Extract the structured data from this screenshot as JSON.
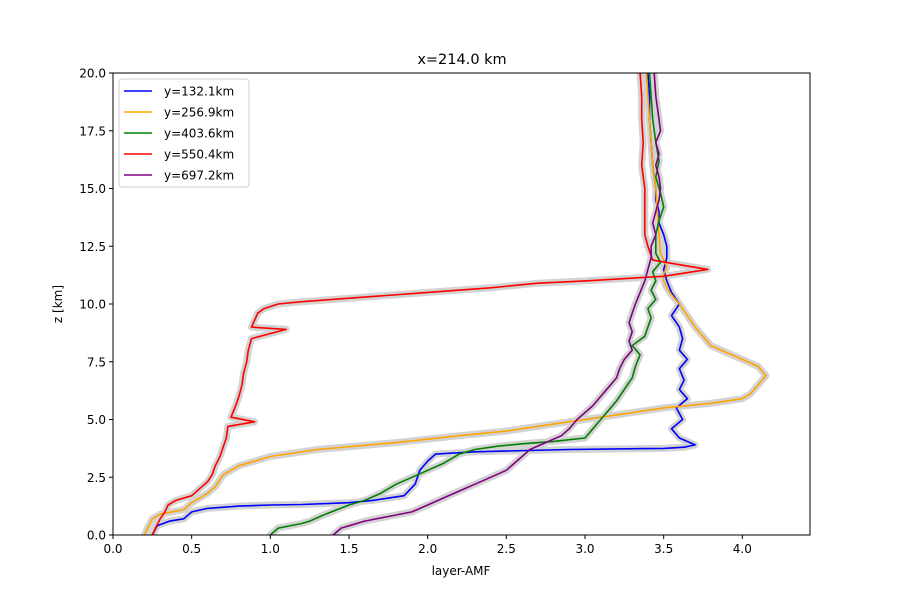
{
  "chart_data": {
    "type": "line",
    "title": "x=214.0 km",
    "xlabel": "layer-AMF",
    "ylabel": "z [km]",
    "xlim": [
      0.0,
      4.43
    ],
    "ylim": [
      0.0,
      20.0
    ],
    "xticks": [
      0.0,
      0.5,
      1.0,
      1.5,
      2.0,
      2.5,
      3.0,
      3.5,
      4.0
    ],
    "xtick_labels": [
      "0.0",
      "0.5",
      "1.0",
      "1.5",
      "2.0",
      "2.5",
      "3.0",
      "3.5",
      "4.0"
    ],
    "yticks": [
      0.0,
      2.5,
      5.0,
      7.5,
      10.0,
      12.5,
      15.0,
      17.5,
      20.0
    ],
    "ytick_labels": [
      "0.0",
      "2.5",
      "5.0",
      "7.5",
      "10.0",
      "12.5",
      "15.0",
      "17.5",
      "20.0"
    ],
    "grid": false,
    "legend_position": "top-left",
    "uncertainty_band_color": "#d3d3d3",
    "series": [
      {
        "name": "y=132.1km",
        "color": "#0000ff",
        "points": [
          [
            0.25,
            0.0
          ],
          [
            0.28,
            0.4
          ],
          [
            0.36,
            0.6
          ],
          [
            0.45,
            0.7
          ],
          [
            0.5,
            1.0
          ],
          [
            0.6,
            1.15
          ],
          [
            0.8,
            1.25
          ],
          [
            1.0,
            1.3
          ],
          [
            1.2,
            1.32
          ],
          [
            1.5,
            1.4
          ],
          [
            1.65,
            1.5
          ],
          [
            1.85,
            1.7
          ],
          [
            1.92,
            2.2
          ],
          [
            1.95,
            2.8
          ],
          [
            2.0,
            3.2
          ],
          [
            2.05,
            3.5
          ],
          [
            2.3,
            3.6
          ],
          [
            2.9,
            3.7
          ],
          [
            3.5,
            3.75
          ],
          [
            3.63,
            3.8
          ],
          [
            3.7,
            3.9
          ],
          [
            3.6,
            4.2
          ],
          [
            3.55,
            4.6
          ],
          [
            3.62,
            5.0
          ],
          [
            3.58,
            5.5
          ],
          [
            3.65,
            5.9
          ],
          [
            3.6,
            6.3
          ],
          [
            3.63,
            6.7
          ],
          [
            3.6,
            7.2
          ],
          [
            3.65,
            7.6
          ],
          [
            3.6,
            8.0
          ],
          [
            3.62,
            8.5
          ],
          [
            3.6,
            9.0
          ],
          [
            3.55,
            9.5
          ],
          [
            3.58,
            9.8
          ],
          [
            3.6,
            10.0
          ],
          [
            3.55,
            10.5
          ],
          [
            3.52,
            11.0
          ],
          [
            3.5,
            11.5
          ],
          [
            3.52,
            12.0
          ],
          [
            3.52,
            12.5
          ],
          [
            3.5,
            13.0
          ],
          [
            3.47,
            13.5
          ],
          [
            3.47,
            14.0
          ],
          [
            3.45,
            14.5
          ],
          [
            3.45,
            15.0
          ],
          [
            3.43,
            16.0
          ],
          [
            3.42,
            17.0
          ],
          [
            3.41,
            18.0
          ],
          [
            3.41,
            19.0
          ],
          [
            3.4,
            20.0
          ]
        ]
      },
      {
        "name": "y=256.9km",
        "color": "#ffa500",
        "points": [
          [
            0.2,
            0.0
          ],
          [
            0.22,
            0.3
          ],
          [
            0.25,
            0.7
          ],
          [
            0.3,
            0.9
          ],
          [
            0.45,
            1.1
          ],
          [
            0.5,
            1.4
          ],
          [
            0.6,
            1.8
          ],
          [
            0.65,
            2.1
          ],
          [
            0.7,
            2.6
          ],
          [
            0.8,
            3.0
          ],
          [
            1.0,
            3.4
          ],
          [
            1.3,
            3.7
          ],
          [
            1.8,
            4.0
          ],
          [
            2.2,
            4.3
          ],
          [
            2.5,
            4.5
          ],
          [
            2.8,
            4.8
          ],
          [
            3.0,
            5.0
          ],
          [
            3.2,
            5.2
          ],
          [
            3.5,
            5.5
          ],
          [
            3.8,
            5.7
          ],
          [
            4.0,
            5.9
          ],
          [
            4.05,
            6.1
          ],
          [
            4.1,
            6.5
          ],
          [
            4.15,
            6.9
          ],
          [
            4.1,
            7.3
          ],
          [
            4.0,
            7.6
          ],
          [
            3.9,
            7.9
          ],
          [
            3.8,
            8.2
          ],
          [
            3.75,
            8.6
          ],
          [
            3.7,
            9.0
          ],
          [
            3.65,
            9.5
          ],
          [
            3.6,
            10.0
          ],
          [
            3.55,
            10.4
          ],
          [
            3.52,
            10.7
          ],
          [
            3.5,
            11.0
          ],
          [
            3.5,
            11.3
          ],
          [
            3.52,
            11.6
          ],
          [
            3.5,
            11.9
          ],
          [
            3.48,
            12.2
          ],
          [
            3.47,
            13.0
          ],
          [
            3.46,
            14.0
          ],
          [
            3.45,
            15.0
          ],
          [
            3.43,
            16.0
          ],
          [
            3.42,
            17.0
          ],
          [
            3.41,
            18.0
          ],
          [
            3.4,
            19.0
          ],
          [
            3.39,
            20.0
          ]
        ]
      },
      {
        "name": "y=403.6km",
        "color": "#008000",
        "points": [
          [
            1.0,
            0.0
          ],
          [
            1.05,
            0.3
          ],
          [
            1.2,
            0.5
          ],
          [
            1.25,
            0.6
          ],
          [
            1.35,
            0.9
          ],
          [
            1.5,
            1.3
          ],
          [
            1.6,
            1.5
          ],
          [
            1.7,
            1.8
          ],
          [
            1.8,
            2.2
          ],
          [
            1.9,
            2.5
          ],
          [
            2.0,
            2.8
          ],
          [
            2.1,
            3.1
          ],
          [
            2.2,
            3.5
          ],
          [
            2.3,
            3.7
          ],
          [
            2.45,
            3.85
          ],
          [
            2.6,
            3.95
          ],
          [
            2.8,
            4.05
          ],
          [
            3.0,
            4.2
          ],
          [
            3.05,
            4.6
          ],
          [
            3.1,
            5.0
          ],
          [
            3.15,
            5.4
          ],
          [
            3.2,
            5.8
          ],
          [
            3.25,
            6.3
          ],
          [
            3.3,
            6.8
          ],
          [
            3.32,
            7.3
          ],
          [
            3.35,
            7.8
          ],
          [
            3.3,
            8.2
          ],
          [
            3.38,
            8.6
          ],
          [
            3.4,
            9.0
          ],
          [
            3.42,
            9.4
          ],
          [
            3.4,
            9.8
          ],
          [
            3.45,
            10.2
          ],
          [
            3.42,
            10.6
          ],
          [
            3.45,
            11.0
          ],
          [
            3.43,
            11.4
          ],
          [
            3.48,
            11.8
          ],
          [
            3.45,
            12.2
          ],
          [
            3.45,
            13.0
          ],
          [
            3.47,
            13.6
          ],
          [
            3.5,
            14.2
          ],
          [
            3.48,
            14.8
          ],
          [
            3.45,
            15.5
          ],
          [
            3.47,
            16.2
          ],
          [
            3.45,
            17.0
          ],
          [
            3.43,
            18.0
          ],
          [
            3.42,
            19.0
          ],
          [
            3.41,
            20.0
          ]
        ]
      },
      {
        "name": "y=550.4km",
        "color": "#ff0000",
        "points": [
          [
            0.25,
            0.0
          ],
          [
            0.27,
            0.3
          ],
          [
            0.3,
            0.7
          ],
          [
            0.33,
            1.0
          ],
          [
            0.35,
            1.3
          ],
          [
            0.4,
            1.5
          ],
          [
            0.5,
            1.7
          ],
          [
            0.55,
            2.0
          ],
          [
            0.6,
            2.3
          ],
          [
            0.63,
            2.6
          ],
          [
            0.65,
            3.0
          ],
          [
            0.68,
            3.4
          ],
          [
            0.7,
            3.8
          ],
          [
            0.72,
            4.2
          ],
          [
            0.73,
            4.7
          ],
          [
            0.9,
            4.9
          ],
          [
            0.75,
            5.1
          ],
          [
            0.78,
            5.6
          ],
          [
            0.8,
            6.0
          ],
          [
            0.82,
            6.5
          ],
          [
            0.83,
            7.0
          ],
          [
            0.85,
            7.5
          ],
          [
            0.86,
            8.0
          ],
          [
            0.88,
            8.5
          ],
          [
            1.1,
            8.9
          ],
          [
            0.88,
            9.0
          ],
          [
            0.9,
            9.3
          ],
          [
            0.92,
            9.6
          ],
          [
            0.96,
            9.8
          ],
          [
            1.05,
            10.0
          ],
          [
            1.2,
            10.1
          ],
          [
            1.6,
            10.3
          ],
          [
            2.0,
            10.5
          ],
          [
            2.4,
            10.7
          ],
          [
            2.7,
            10.9
          ],
          [
            3.0,
            11.0
          ],
          [
            3.5,
            11.2
          ],
          [
            3.78,
            11.5
          ],
          [
            3.6,
            11.7
          ],
          [
            3.43,
            11.9
          ],
          [
            3.4,
            12.5
          ],
          [
            3.38,
            13.0
          ],
          [
            3.38,
            14.0
          ],
          [
            3.38,
            15.0
          ],
          [
            3.36,
            16.0
          ],
          [
            3.37,
            17.0
          ],
          [
            3.36,
            18.0
          ],
          [
            3.36,
            19.0
          ],
          [
            3.35,
            20.0
          ]
        ]
      },
      {
        "name": "y=697.2km",
        "color": "#800080",
        "points": [
          [
            1.4,
            0.0
          ],
          [
            1.45,
            0.3
          ],
          [
            1.6,
            0.6
          ],
          [
            1.75,
            0.8
          ],
          [
            1.9,
            1.0
          ],
          [
            2.0,
            1.3
          ],
          [
            2.1,
            1.6
          ],
          [
            2.2,
            1.9
          ],
          [
            2.3,
            2.2
          ],
          [
            2.4,
            2.5
          ],
          [
            2.5,
            2.8
          ],
          [
            2.55,
            3.1
          ],
          [
            2.6,
            3.4
          ],
          [
            2.65,
            3.7
          ],
          [
            2.75,
            4.0
          ],
          [
            2.85,
            4.3
          ],
          [
            2.9,
            4.6
          ],
          [
            2.95,
            5.0
          ],
          [
            3.0,
            5.3
          ],
          [
            3.05,
            5.6
          ],
          [
            3.1,
            6.0
          ],
          [
            3.15,
            6.4
          ],
          [
            3.2,
            6.8
          ],
          [
            3.22,
            7.2
          ],
          [
            3.25,
            7.6
          ],
          [
            3.3,
            8.0
          ],
          [
            3.28,
            8.4
          ],
          [
            3.3,
            8.8
          ],
          [
            3.28,
            9.2
          ],
          [
            3.3,
            9.6
          ],
          [
            3.32,
            10.0
          ],
          [
            3.35,
            10.5
          ],
          [
            3.38,
            11.0
          ],
          [
            3.4,
            11.5
          ],
          [
            3.42,
            12.0
          ],
          [
            3.42,
            12.5
          ],
          [
            3.45,
            13.0
          ],
          [
            3.43,
            13.5
          ],
          [
            3.45,
            14.0
          ],
          [
            3.47,
            14.5
          ],
          [
            3.48,
            15.0
          ],
          [
            3.47,
            15.5
          ],
          [
            3.45,
            16.0
          ],
          [
            3.47,
            16.5
          ],
          [
            3.45,
            17.0
          ],
          [
            3.48,
            17.5
          ],
          [
            3.47,
            18.0
          ],
          [
            3.45,
            19.0
          ],
          [
            3.44,
            20.0
          ]
        ]
      }
    ]
  }
}
